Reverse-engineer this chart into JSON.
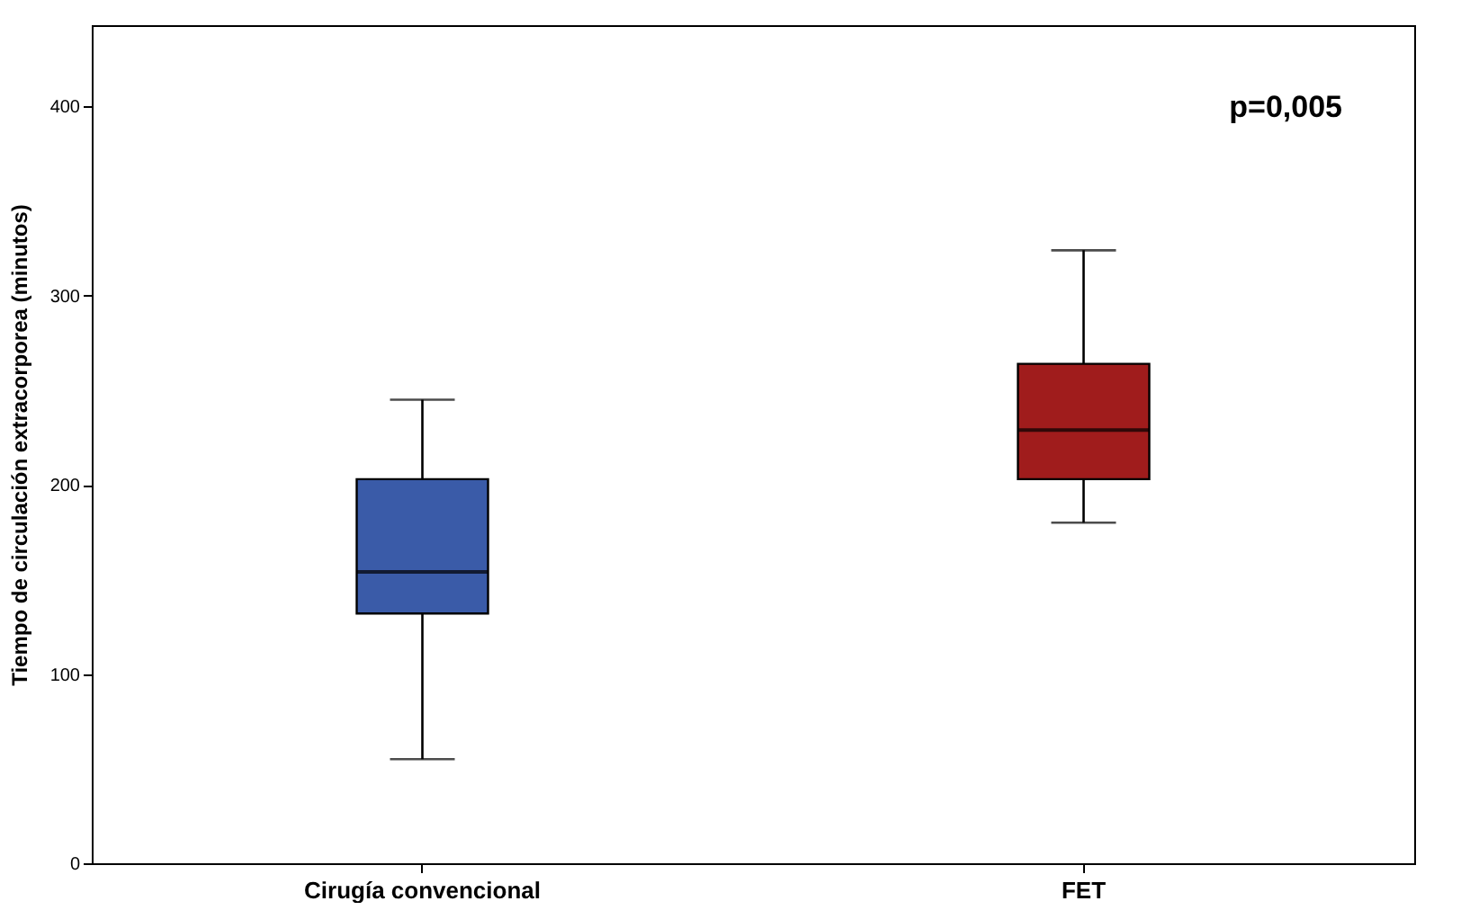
{
  "chart_data": {
    "type": "box",
    "ylabel": "Tiempo de circulación extracorporea (minutos)",
    "categories": [
      "Cirugía convencional",
      "FET"
    ],
    "boxes": [
      {
        "low": 55,
        "q1": 132,
        "median": 154,
        "q3": 203,
        "high": 245
      },
      {
        "low": 180,
        "q1": 203,
        "median": 229,
        "q3": 264,
        "high": 324
      }
    ],
    "colors": [
      "#3a5ba8",
      "#a01c1c"
    ],
    "ylim": [
      0,
      443
    ],
    "yticks": [
      0,
      100,
      200,
      300,
      400
    ],
    "grid": false,
    "annotations": [
      "p=0,005"
    ]
  }
}
